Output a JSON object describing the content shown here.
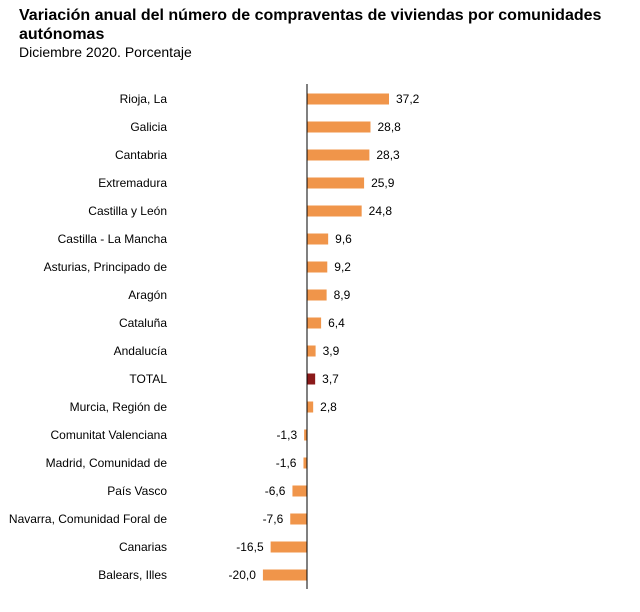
{
  "chart_data": {
    "type": "bar",
    "orientation": "horizontal",
    "title": "Variación anual del número de compraventas de viviendas por comunidades autónomas",
    "subtitle": "Diciembre 2020. Porcentaje",
    "categories": [
      "Rioja, La",
      "Galicia",
      "Cantabria",
      "Extremadura",
      "Castilla y León",
      "Castilla - La Mancha",
      "Asturias, Principado de",
      "Aragón",
      "Cataluña",
      "Andalucía",
      "TOTAL",
      "Murcia, Región de",
      "Comunitat Valenciana",
      "Madrid, Comunidad de",
      "País Vasco",
      "Navarra, Comunidad Foral de",
      "Canarias",
      "Balears, Illes"
    ],
    "values": [
      37.2,
      28.8,
      28.3,
      25.9,
      24.8,
      9.6,
      9.2,
      8.9,
      6.4,
      3.9,
      3.7,
      2.8,
      -1.3,
      -1.6,
      -6.6,
      -7.6,
      -16.5,
      -20.0
    ],
    "value_labels": [
      "37,2",
      "28,8",
      "28,3",
      "25,9",
      "24,8",
      "9,6",
      "9,2",
      "8,9",
      "6,4",
      "3,9",
      "3,7",
      "2,8",
      "-1,3",
      "-1,6",
      "-6,6",
      "-7,6",
      "-16,5",
      "-20,0"
    ],
    "highlight": "TOTAL",
    "colors": {
      "bar": "#F0954A",
      "highlight": "#8B1A1A",
      "axis": "#000000"
    },
    "xlabel": "",
    "ylabel": "",
    "xlim": [
      -20,
      37.2
    ]
  }
}
